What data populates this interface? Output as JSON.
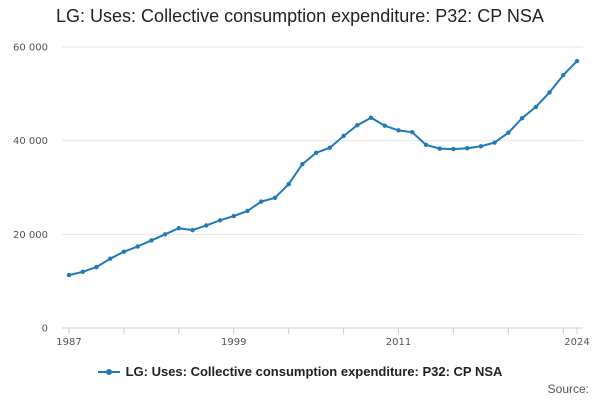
{
  "colors": {
    "series": "#1f7ab8",
    "grid": "#e6e6e6",
    "axis": "#cccccc"
  },
  "source_label": "Source:",
  "chart_data": {
    "type": "line",
    "title": "LG: Uses: Collective consumption expenditure: P32: CP NSA",
    "xlabel": "",
    "ylabel": "",
    "x_tick_labels": [
      "1987",
      "1999",
      "2011",
      "2024"
    ],
    "y_tick_labels": [
      "0",
      "20 000",
      "40 000",
      "60 000"
    ],
    "y_ticks": [
      0,
      20000,
      40000,
      60000
    ],
    "ylim": [
      0,
      60000
    ],
    "xlim": [
      1987,
      2024
    ],
    "grid": true,
    "legend_position": "bottom",
    "series": [
      {
        "name": "LG: Uses: Collective consumption expenditure: P32: CP NSA",
        "x": [
          1987,
          1988,
          1989,
          1990,
          1991,
          1992,
          1993,
          1994,
          1995,
          1996,
          1997,
          1998,
          1999,
          2000,
          2001,
          2002,
          2003,
          2004,
          2005,
          2006,
          2007,
          2008,
          2009,
          2010,
          2011,
          2012,
          2013,
          2014,
          2015,
          2016,
          2017,
          2018,
          2019,
          2020,
          2021,
          2022,
          2023,
          2024
        ],
        "values": [
          11300,
          12000,
          13000,
          14800,
          16300,
          17400,
          18700,
          20000,
          21300,
          20900,
          21900,
          23000,
          23900,
          25000,
          27000,
          27800,
          30700,
          35000,
          37400,
          38500,
          41000,
          43300,
          44900,
          43200,
          42200,
          41800,
          39100,
          38300,
          38200,
          38400,
          38800,
          39600,
          41700,
          44800,
          47200,
          50300,
          54000,
          57000
        ]
      }
    ]
  }
}
